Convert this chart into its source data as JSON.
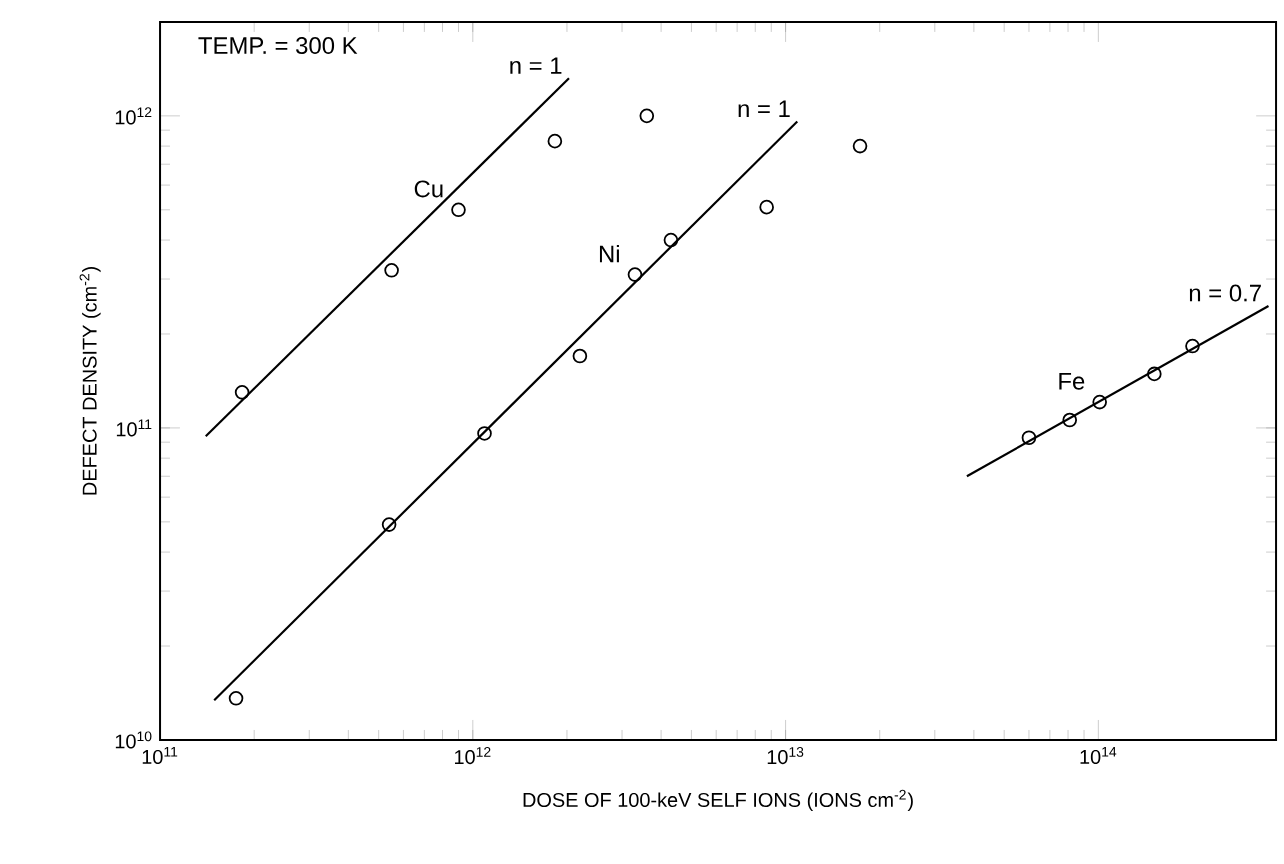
{
  "chart_data": {
    "type": "scatter",
    "xlabel": "DOSE OF 100-keV SELF IONS (IONS cm$^{-2}$)",
    "ylabel": "DEFECT DENSITY (cm$^{-2}$)",
    "log": "xy",
    "grid": false,
    "xlim": [
      100000000000.0,
      370000000000000.0
    ],
    "ylim": [
      10000000000.0,
      2000000000000.0
    ],
    "xticks": [
      {
        "value": 100000000000.0,
        "label": "10$^{11}$"
      },
      {
        "value": 1000000000000.0,
        "label": "10$^{12}$"
      },
      {
        "value": 10000000000000.0,
        "label": "10$^{13}$"
      },
      {
        "value": 100000000000000.0,
        "label": "10$^{14}$"
      }
    ],
    "yticks": [
      {
        "value": 10000000000.0,
        "label": "10$^{10}$"
      },
      {
        "value": 100000000000.0,
        "label": "10$^{11}$"
      },
      {
        "value": 1000000000000.0,
        "label": "10$^{12}$"
      }
    ],
    "series": [
      {
        "name": "Cu",
        "marker": "circle",
        "color": "#000000",
        "x": [
          183000000000.0,
          550000000000.0,
          900000000000.0,
          1830000000000.0,
          3600000000000.0
        ],
        "values": [
          130000000000.0,
          320000000000.0,
          500000000000.0,
          830000000000.0,
          1000000000000.0
        ]
      },
      {
        "name": "Ni",
        "marker": "circle",
        "color": "#000000",
        "x": [
          175000000000.0,
          540000000000.0,
          1090000000000.0,
          2200000000000.0,
          3300000000000.0,
          4300000000000.0,
          8700000000000.0,
          17300000000000.0
        ],
        "values": [
          13600000000.0,
          49000000000.0,
          96000000000.0,
          170000000000.0,
          310000000000.0,
          400000000000.0,
          510000000000.0,
          800000000000.0
        ]
      },
      {
        "name": "Fe",
        "marker": "circle",
        "color": "#000000",
        "x": [
          60000000000000.0,
          81000000000000.0,
          101000000000000.0,
          151000000000000.0,
          200000000000000.0
        ],
        "values": [
          93000000000.0,
          106000000000.0,
          121000000000.0,
          149000000000.0,
          183000000000.0
        ]
      },
      {
        "type": "line",
        "color": "#000000",
        "line_style": "solid",
        "x": [
          140000000000.0,
          2030000000000.0
        ],
        "values": [
          94000000000.0,
          1320000000000.0
        ]
      },
      {
        "type": "line",
        "color": "#000000",
        "line_style": "solid",
        "x": [
          149000000000.0,
          10900000000000.0
        ],
        "values": [
          13400000000.0,
          960000000000.0
        ]
      },
      {
        "type": "line",
        "color": "#000000",
        "line_style": "solid",
        "x": [
          38000000000000.0,
          350000000000000.0
        ],
        "values": [
          70000000000.0,
          246000000000.0
        ]
      }
    ],
    "annotations": [
      "TEMP. = 300 K",
      {
        "text": "n = 1",
        "x": 2030000000000.0,
        "y": 1320000000000.0
      },
      {
        "text": "n = 1",
        "x": 10900000000000.0,
        "y": 960000000000.0
      },
      {
        "text": "n = 0.7",
        "x": 350000000000000.0,
        "y": 246000000000.0
      }
    ]
  }
}
